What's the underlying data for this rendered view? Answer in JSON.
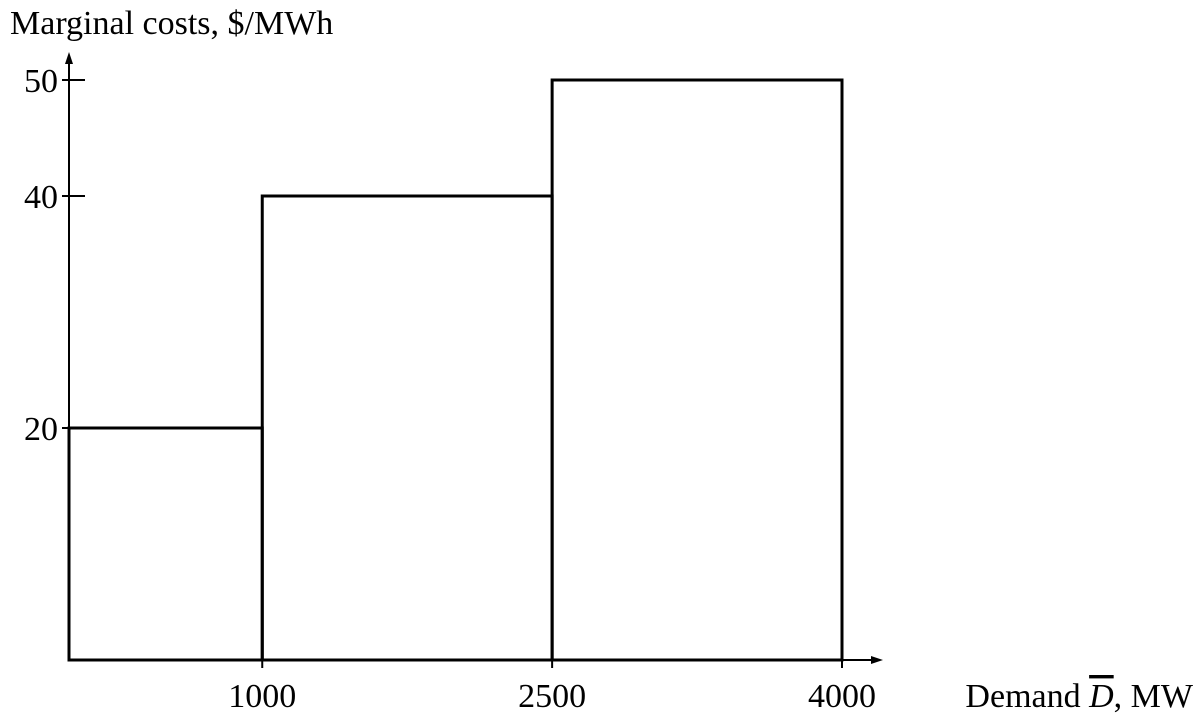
{
  "chart_data": {
    "type": "bar",
    "title": "",
    "ylabel": "Marginal costs, $/MWh",
    "xlabel": {
      "prefix": "Demand ",
      "symbol": "D",
      "suffix": ", MW"
    },
    "xlim": [
      0,
      4000
    ],
    "ylim": [
      0,
      50
    ],
    "x_ticks": [
      1000,
      2500,
      4000
    ],
    "y_ticks": [
      20,
      40,
      50
    ],
    "steps": [
      {
        "x_start": 0,
        "x_end": 1000,
        "value": 20
      },
      {
        "x_start": 1000,
        "x_end": 2500,
        "value": 40
      },
      {
        "x_start": 2500,
        "x_end": 4000,
        "value": 50
      }
    ],
    "grid": false,
    "legend": "none",
    "colors": {
      "stroke": "#000000",
      "background": "#ffffff"
    }
  }
}
